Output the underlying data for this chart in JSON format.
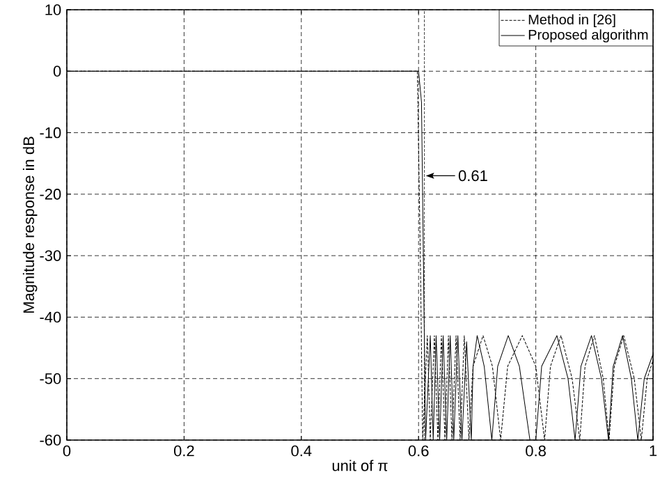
{
  "chart_data": {
    "type": "line",
    "xlabel": "unit of π",
    "ylabel": "Magnitude response in dB",
    "xlim": [
      0,
      1
    ],
    "ylim": [
      -60,
      10
    ],
    "xticks": [
      0,
      0.2,
      0.4,
      0.6,
      0.8,
      1
    ],
    "yticks": [
      -60,
      -50,
      -40,
      -30,
      -20,
      -10,
      0,
      10
    ],
    "grid": true,
    "legend": "top right",
    "series": [
      {
        "name": "Method in [26]",
        "color": "#000000",
        "line_style": "dashed",
        "x": [
          0,
          0.598,
          0.603,
          0.607,
          0.615,
          0.62,
          0.627,
          0.633,
          0.639,
          0.645,
          0.651,
          0.657,
          0.664,
          0.671,
          0.678,
          0.686,
          0.693,
          0.71,
          0.726,
          0.74,
          0.752,
          0.777,
          0.8,
          0.815,
          0.825,
          0.843,
          0.862,
          0.875,
          0.884,
          0.9,
          0.915,
          0.925,
          0.934,
          0.95,
          0.968,
          0.98,
          0.99,
          1.0
        ],
        "values": [
          0,
          0,
          -30,
          -60,
          -43,
          -60,
          -43,
          -60,
          -43,
          -60,
          -43,
          -60,
          -43,
          -60,
          -43,
          -60,
          -48,
          -43,
          -48,
          -60,
          -48,
          -43,
          -48,
          -60,
          -48,
          -43,
          -50,
          -60,
          -48,
          -43,
          -50,
          -60,
          -48,
          -43,
          -50,
          -60,
          -50,
          -47
        ]
      },
      {
        "name": "Proposed algorithm",
        "color": "#000000",
        "line_style": "solid",
        "x": [
          0,
          0.6,
          0.605,
          0.612,
          0.62,
          0.625,
          0.63,
          0.636,
          0.642,
          0.648,
          0.654,
          0.66,
          0.667,
          0.674,
          0.682,
          0.69,
          0.693,
          0.7,
          0.712,
          0.725,
          0.735,
          0.753,
          0.772,
          0.79,
          0.8,
          0.81,
          0.836,
          0.855,
          0.867,
          0.877,
          0.895,
          0.912,
          0.924,
          0.932,
          0.948,
          0.963,
          0.974,
          0.985,
          1.0
        ],
        "values": [
          0,
          0,
          -5,
          -60,
          -43,
          -60,
          -43,
          -60,
          -43,
          -60,
          -43,
          -60,
          -43,
          -60,
          -44,
          -60,
          -48,
          -43,
          -48,
          -60,
          -48,
          -43,
          -48,
          -60,
          -60,
          -48,
          -43,
          -50,
          -60,
          -48,
          -43,
          -50,
          -60,
          -48,
          -43,
          -50,
          -60,
          -50,
          -46
        ]
      }
    ],
    "ref_lines": [
      {
        "axis": "x",
        "value": 0.61,
        "line_style": "dashed"
      }
    ],
    "annotations": [
      {
        "text": "0.61",
        "x": 0.61,
        "y": -17
      }
    ]
  }
}
